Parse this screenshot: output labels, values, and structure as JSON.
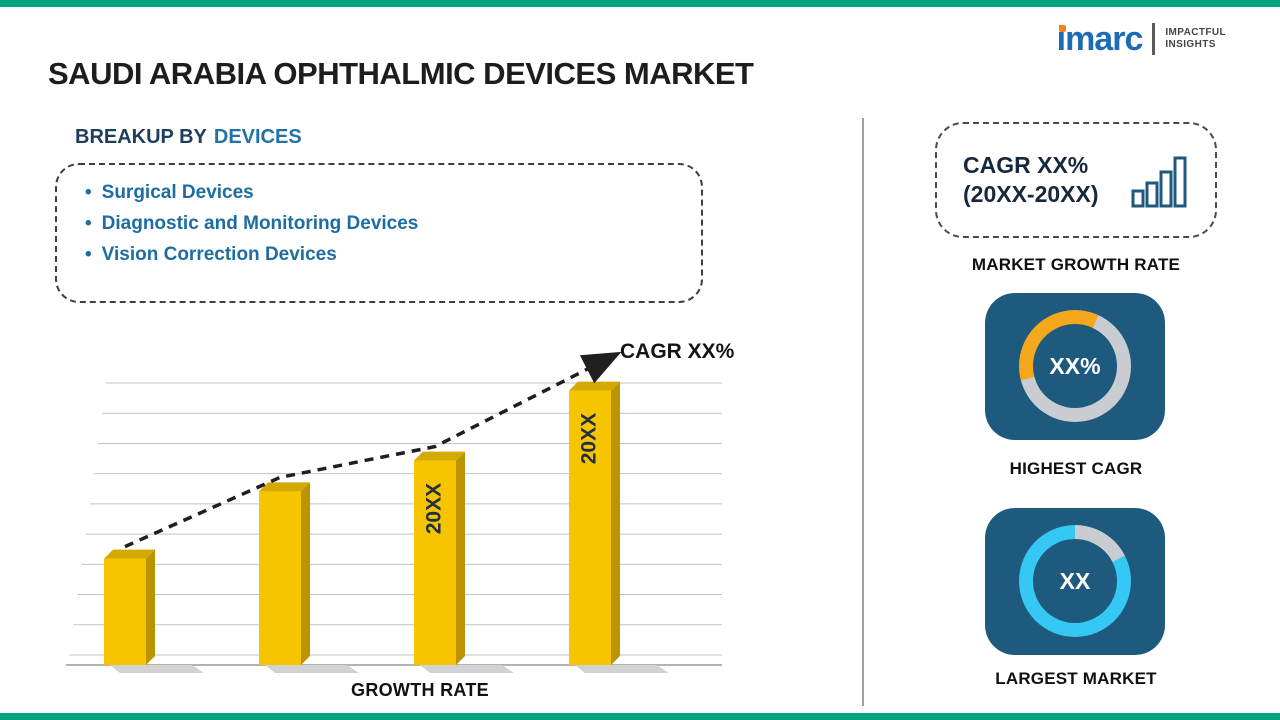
{
  "meta": {
    "title": "SAUDI ARABIA OPHTHALMIC DEVICES MARKET"
  },
  "logo": {
    "brand": "imarc",
    "tagline1": "IMPACTFUL",
    "tagline2": "INSIGHTS"
  },
  "left": {
    "heading_prefix": "BREAKUP BY",
    "heading_highlight": "DEVICES",
    "devices": [
      "Surgical Devices",
      "Diagnostic and Monitoring Devices",
      "Vision Correction Devices"
    ]
  },
  "chart_data": [
    {
      "type": "bar",
      "categories": [
        "",
        "",
        "20XX",
        "20XX"
      ],
      "values": [
        38,
        62,
        73,
        98
      ],
      "ylim": [
        0,
        100
      ],
      "xlabel": "GROWTH RATE",
      "annotation": "CAGR XX%",
      "grid": true,
      "trend": "dashed-arrow-ascending",
      "bar_color": "#f6c500",
      "bar_top_color": "#d4a900",
      "bar_side_color": "#bc9300",
      "note": "y-axis unlabeled; values are relative bar heights"
    },
    {
      "type": "donut",
      "label": "HIGHEST CAGR",
      "center_label": "XX%",
      "arc_color": "#f5a81c",
      "track_color": "#c9cdd2",
      "arc_start_deg": 255,
      "arc_sweep_deg": 130,
      "tile_color": "#1e5a7d"
    },
    {
      "type": "donut",
      "label": "LARGEST MARKET",
      "center_label": "XX",
      "arc_color": "#35c8f5",
      "track_color": "#c9cdd2",
      "arc_start_deg": 63,
      "arc_sweep_deg": 297,
      "tile_color": "#1e5a7d"
    }
  ],
  "right": {
    "cagr_card": {
      "line1": "CAGR XX%",
      "line2": "(20XX-20XX)",
      "caption": "MARKET GROWTH RATE"
    }
  },
  "colors": {
    "teal_accent": "#00a584",
    "navy_tile": "#1e5a7d",
    "blue_text": "#1d6da3"
  }
}
